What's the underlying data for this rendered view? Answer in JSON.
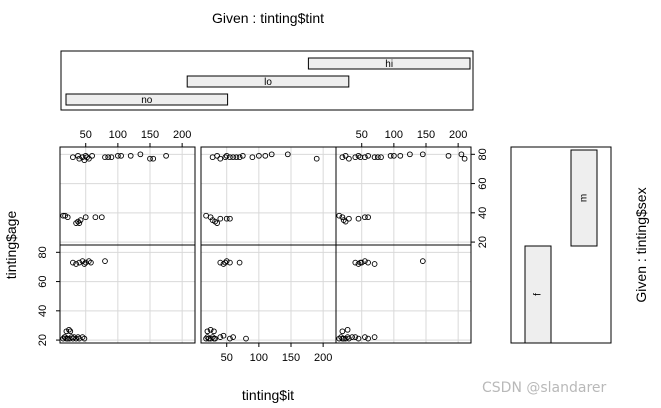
{
  "chart_data": {
    "type": "scatter",
    "plot_kind": "coplot",
    "x_label": "tinting$it",
    "y_label": "tinting$age",
    "given_top_label": "Given : tinting$tint",
    "given_right_label": "Given : tinting$sex",
    "watermark": "CSDN @slandarer",
    "x_range": [
      10,
      220
    ],
    "y_range": [
      18,
      85
    ],
    "x_ticks": [
      "50",
      "100",
      "150",
      "200"
    ],
    "y_ticks": [
      "20",
      "40",
      "60",
      "80"
    ],
    "grid": true,
    "tint_levels": [
      {
        "label": "no",
        "span": [
          0,
          0.4
        ]
      },
      {
        "label": "lo",
        "span": [
          0.3,
          0.7
        ]
      },
      {
        "label": "hi",
        "span": [
          0.6,
          1.0
        ]
      }
    ],
    "sex_levels": [
      {
        "label": "f",
        "age_span": [
          18,
          82
        ]
      },
      {
        "label": "m",
        "age_span": [
          20,
          82
        ]
      }
    ],
    "panels": [
      {
        "tint": "no",
        "sex": "f",
        "points": [
          [
            15,
            21
          ],
          [
            17,
            22
          ],
          [
            18,
            22
          ],
          [
            20,
            21
          ],
          [
            22,
            21
          ],
          [
            25,
            21
          ],
          [
            28,
            22
          ],
          [
            30,
            21
          ],
          [
            32,
            22
          ],
          [
            35,
            21
          ],
          [
            38,
            22
          ],
          [
            40,
            21
          ],
          [
            45,
            22
          ],
          [
            48,
            21
          ],
          [
            20,
            26
          ],
          [
            24,
            27
          ],
          [
            26,
            26
          ],
          [
            30,
            73
          ],
          [
            35,
            72
          ],
          [
            40,
            73
          ],
          [
            45,
            74
          ],
          [
            48,
            72
          ],
          [
            50,
            73
          ],
          [
            55,
            74
          ],
          [
            58,
            73
          ],
          [
            80,
            74
          ]
        ]
      },
      {
        "tint": "lo",
        "sex": "f",
        "points": [
          [
            18,
            21
          ],
          [
            20,
            22
          ],
          [
            22,
            21
          ],
          [
            25,
            21
          ],
          [
            28,
            22
          ],
          [
            30,
            21
          ],
          [
            32,
            21
          ],
          [
            40,
            22
          ],
          [
            45,
            23
          ],
          [
            55,
            21
          ],
          [
            60,
            22
          ],
          [
            80,
            21
          ],
          [
            20,
            26
          ],
          [
            25,
            27
          ],
          [
            30,
            26
          ],
          [
            40,
            73
          ],
          [
            45,
            72
          ],
          [
            48,
            73
          ],
          [
            50,
            74
          ],
          [
            55,
            73
          ],
          [
            70,
            73
          ]
        ]
      },
      {
        "tint": "hi",
        "sex": "f",
        "points": [
          [
            15,
            21
          ],
          [
            18,
            22
          ],
          [
            20,
            21
          ],
          [
            22,
            21
          ],
          [
            25,
            21
          ],
          [
            28,
            22
          ],
          [
            30,
            21
          ],
          [
            35,
            22
          ],
          [
            40,
            22
          ],
          [
            45,
            21
          ],
          [
            55,
            22
          ],
          [
            60,
            21
          ],
          [
            70,
            22
          ],
          [
            20,
            26
          ],
          [
            28,
            27
          ],
          [
            40,
            73
          ],
          [
            45,
            72
          ],
          [
            48,
            73
          ],
          [
            50,
            73
          ],
          [
            55,
            74
          ],
          [
            60,
            73
          ],
          [
            70,
            72
          ],
          [
            145,
            74
          ]
        ]
      },
      {
        "tint": "no",
        "sex": "m",
        "points": [
          [
            15,
            38
          ],
          [
            18,
            38
          ],
          [
            22,
            37
          ],
          [
            35,
            33
          ],
          [
            38,
            34
          ],
          [
            42,
            35
          ],
          [
            40,
            33
          ],
          [
            50,
            37
          ],
          [
            65,
            37
          ],
          [
            75,
            37
          ],
          [
            30,
            78
          ],
          [
            38,
            79
          ],
          [
            40,
            77
          ],
          [
            45,
            78
          ],
          [
            48,
            76
          ],
          [
            50,
            79
          ],
          [
            52,
            78
          ],
          [
            55,
            77
          ],
          [
            60,
            79
          ],
          [
            80,
            78
          ],
          [
            85,
            78
          ],
          [
            90,
            78
          ],
          [
            100,
            79
          ],
          [
            105,
            79
          ],
          [
            120,
            79
          ],
          [
            135,
            80
          ],
          [
            150,
            77
          ],
          [
            155,
            77
          ],
          [
            175,
            79
          ]
        ]
      },
      {
        "tint": "lo",
        "sex": "m",
        "points": [
          [
            18,
            38
          ],
          [
            25,
            37
          ],
          [
            28,
            35
          ],
          [
            32,
            34
          ],
          [
            35,
            33
          ],
          [
            40,
            36
          ],
          [
            50,
            36
          ],
          [
            55,
            36
          ],
          [
            28,
            78
          ],
          [
            35,
            79
          ],
          [
            40,
            77
          ],
          [
            48,
            78
          ],
          [
            50,
            79
          ],
          [
            55,
            78
          ],
          [
            60,
            78
          ],
          [
            65,
            78
          ],
          [
            70,
            78
          ],
          [
            75,
            79
          ],
          [
            90,
            78
          ],
          [
            100,
            79
          ],
          [
            110,
            79
          ],
          [
            120,
            80
          ],
          [
            145,
            80
          ],
          [
            190,
            77
          ]
        ]
      },
      {
        "tint": "hi",
        "sex": "m",
        "points": [
          [
            15,
            38
          ],
          [
            20,
            37
          ],
          [
            22,
            35
          ],
          [
            25,
            34
          ],
          [
            30,
            36
          ],
          [
            45,
            36
          ],
          [
            55,
            37
          ],
          [
            60,
            37
          ],
          [
            20,
            78
          ],
          [
            25,
            79
          ],
          [
            30,
            77
          ],
          [
            40,
            78
          ],
          [
            45,
            79
          ],
          [
            48,
            78
          ],
          [
            55,
            78
          ],
          [
            60,
            79
          ],
          [
            70,
            78
          ],
          [
            75,
            78
          ],
          [
            80,
            78
          ],
          [
            95,
            79
          ],
          [
            100,
            79
          ],
          [
            110,
            79
          ],
          [
            125,
            80
          ],
          [
            145,
            80
          ],
          [
            185,
            79
          ],
          [
            205,
            80
          ],
          [
            210,
            77
          ]
        ]
      }
    ]
  }
}
